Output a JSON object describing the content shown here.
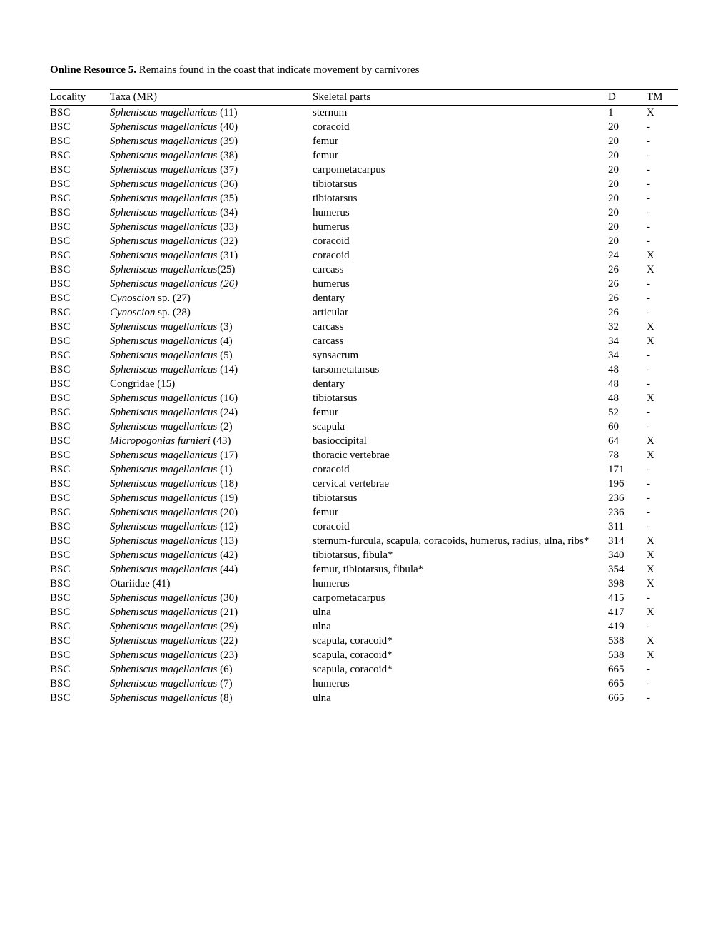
{
  "title_bold": "Online Resource 5.",
  "title_rest": " Remains found in the coast that indicate movement by carnivores",
  "headers": {
    "loc": "Locality",
    "taxa": "Taxa (MR)",
    "skel": "Skeletal parts",
    "d": "D",
    "tm": "TM"
  },
  "rows": [
    {
      "loc": "BSC",
      "taxa_i": "Spheniscus magellanicus",
      "taxa_p": " (11)",
      "skel": "sternum",
      "d": "1",
      "tm": "X"
    },
    {
      "loc": "BSC",
      "taxa_i": "Spheniscus magellanicus",
      "taxa_p": " (40)",
      "skel": "coracoid",
      "d": "20",
      "tm": "-"
    },
    {
      "loc": "BSC",
      "taxa_i": "Spheniscus magellanicus",
      "taxa_p": " (39)",
      "skel": "femur",
      "d": "20",
      "tm": "-"
    },
    {
      "loc": "BSC",
      "taxa_i": "Spheniscus magellanicus",
      "taxa_p": " (38)",
      "skel": "femur",
      "d": "20",
      "tm": "-"
    },
    {
      "loc": "BSC",
      "taxa_i": "Spheniscus magellanicus",
      "taxa_p": " (37)",
      "skel": "carpometacarpus",
      "d": "20",
      "tm": "-"
    },
    {
      "loc": "BSC",
      "taxa_i": "Spheniscus magellanicus",
      "taxa_p": " (36)",
      "skel": "tibiotarsus",
      "d": "20",
      "tm": "-"
    },
    {
      "loc": "BSC",
      "taxa_i": "Spheniscus magellanicus",
      "taxa_p": " (35)",
      "skel": "tibiotarsus",
      "d": "20",
      "tm": "-"
    },
    {
      "loc": "BSC",
      "taxa_i": "Spheniscus magellanicus",
      "taxa_p": " (34)",
      "skel": "humerus",
      "d": "20",
      "tm": "-"
    },
    {
      "loc": "BSC",
      "taxa_i": "Spheniscus magellanicus",
      "taxa_p": " (33)",
      "skel": "humerus",
      "d": "20",
      "tm": "-"
    },
    {
      "loc": "BSC",
      "taxa_i": "Spheniscus magellanicus",
      "taxa_p": " (32)",
      "skel": "coracoid",
      "d": "20",
      "tm": "-"
    },
    {
      "loc": "BSC",
      "taxa_i": "Spheniscus magellanicus",
      "taxa_p": " (31)",
      "skel": "coracoid",
      "d": "24",
      "tm": "X"
    },
    {
      "loc": "BSC",
      "taxa_i": "Spheniscus magellanicus",
      "taxa_p": "(25)",
      "skel": "carcass",
      "d": "26",
      "tm": "X"
    },
    {
      "loc": "BSC",
      "taxa_i": "Spheniscus magellanicus (26)",
      "taxa_p": "",
      "skel": "humerus",
      "d": "26",
      "tm": "-"
    },
    {
      "loc": "BSC",
      "taxa_i": "Cynoscion",
      "taxa_p": " sp. (27)",
      "skel": "dentary",
      "d": "26",
      "tm": "-"
    },
    {
      "loc": "BSC",
      "taxa_i": "Cynoscion",
      "taxa_p": " sp. (28)",
      "skel": "articular",
      "d": "26",
      "tm": "-"
    },
    {
      "loc": "BSC",
      "taxa_i": "Spheniscus magellanicus",
      "taxa_p": " (3)",
      "skel": "carcass",
      "d": "32",
      "tm": "X"
    },
    {
      "loc": "BSC",
      "taxa_i": "Spheniscus magellanicus",
      "taxa_p": " (4)",
      "skel": "carcass",
      "d": "34",
      "tm": "X"
    },
    {
      "loc": "BSC",
      "taxa_i": "Spheniscus magellanicus",
      "taxa_p": " (5)",
      "skel": "synsacrum",
      "d": "34",
      "tm": "-"
    },
    {
      "loc": "BSC",
      "taxa_i": "Spheniscus magellanicus",
      "taxa_p": " (14)",
      "skel": "tarsometatarsus",
      "d": "48",
      "tm": "-"
    },
    {
      "loc": "BSC",
      "taxa_i": "",
      "taxa_p": "Congridae (15)",
      "skel": "dentary",
      "d": "48",
      "tm": "-"
    },
    {
      "loc": "BSC",
      "taxa_i": "Spheniscus magellanicus",
      "taxa_p": " (16)",
      "skel": "tibiotarsus",
      "d": "48",
      "tm": "X"
    },
    {
      "loc": "BSC",
      "taxa_i": "Spheniscus magellanicus",
      "taxa_p": " (24)",
      "skel": "femur",
      "d": "52",
      "tm": "-"
    },
    {
      "loc": "BSC",
      "taxa_i": "Spheniscus magellanicus",
      "taxa_p": " (2)",
      "skel": "scapula",
      "d": "60",
      "tm": "-"
    },
    {
      "loc": "BSC",
      "taxa_i": "Micropogonias furnieri",
      "taxa_p": " (43)",
      "skel": "basioccipital",
      "d": "64",
      "tm": "X"
    },
    {
      "loc": "BSC",
      "taxa_i": "Spheniscus magellanicus",
      "taxa_p": " (17)",
      "skel": "thoracic vertebrae",
      "d": "78",
      "tm": "X"
    },
    {
      "loc": "BSC",
      "taxa_i": "Spheniscus magellanicus",
      "taxa_p": " (1)",
      "skel": "coracoid",
      "d": "171",
      "tm": "-"
    },
    {
      "loc": "BSC",
      "taxa_i": "Spheniscus magellanicus",
      "taxa_p": " (18)",
      "skel": "cervical vertebrae",
      "d": "196",
      "tm": "-"
    },
    {
      "loc": "BSC",
      "taxa_i": "Spheniscus magellanicus",
      "taxa_p": " (19)",
      "skel": "tibiotarsus",
      "d": "236",
      "tm": "-"
    },
    {
      "loc": "BSC",
      "taxa_i": "Spheniscus magellanicus",
      "taxa_p": " (20)",
      "skel": "femur",
      "d": "236",
      "tm": "-"
    },
    {
      "loc": "BSC",
      "taxa_i": "Spheniscus magellanicus",
      "taxa_p": " (12)",
      "skel": "coracoid",
      "d": "311",
      "tm": "-"
    },
    {
      "loc": "BSC",
      "taxa_i": "Spheniscus magellanicus",
      "taxa_p": " (13)",
      "skel": "sternum-furcula, scapula, coracoids, humerus, radius, ulna, ribs*",
      "d": "314",
      "tm": "X"
    },
    {
      "loc": "BSC",
      "taxa_i": "Spheniscus magellanicus",
      "taxa_p": " (42)",
      "skel": "tibiotarsus, fibula*",
      "d": "340",
      "tm": "X"
    },
    {
      "loc": "BSC",
      "taxa_i": "Spheniscus magellanicus",
      "taxa_p": " (44)",
      "skel": "femur, tibiotarsus, fibula*",
      "d": "354",
      "tm": "X"
    },
    {
      "loc": "BSC",
      "taxa_i": "",
      "taxa_p": "Otariidae (41)",
      "skel": "humerus",
      "d": "398",
      "tm": "X"
    },
    {
      "loc": "BSC",
      "taxa_i": "Spheniscus magellanicus",
      "taxa_p": " (30)",
      "skel": "carpometacarpus",
      "d": "415",
      "tm": "-"
    },
    {
      "loc": "BSC",
      "taxa_i": "Spheniscus magellanicus",
      "taxa_p": " (21)",
      "skel": "ulna",
      "d": "417",
      "tm": "X"
    },
    {
      "loc": "BSC",
      "taxa_i": "Spheniscus magellanicus",
      "taxa_p": " (29)",
      "skel": "ulna",
      "d": "419",
      "tm": "-"
    },
    {
      "loc": "BSC",
      "taxa_i": "Spheniscus magellanicus",
      "taxa_p": " (22)",
      "skel": "scapula, coracoid*",
      "d": "538",
      "tm": "X"
    },
    {
      "loc": "BSC",
      "taxa_i": "Spheniscus magellanicus",
      "taxa_p": " (23)",
      "skel": "scapula, coracoid*",
      "d": "538",
      "tm": "X"
    },
    {
      "loc": "BSC",
      "taxa_i": "Spheniscus magellanicus",
      "taxa_p": " (6)",
      "skel": "scapula, coracoid*",
      "d": "665",
      "tm": "-"
    },
    {
      "loc": "BSC",
      "taxa_i": "Spheniscus magellanicus",
      "taxa_p": " (7)",
      "skel": "humerus",
      "d": "665",
      "tm": "-"
    },
    {
      "loc": "BSC",
      "taxa_i": "Spheniscus magellanicus",
      "taxa_p": " (8)",
      "skel": "ulna",
      "d": "665",
      "tm": "-"
    }
  ]
}
